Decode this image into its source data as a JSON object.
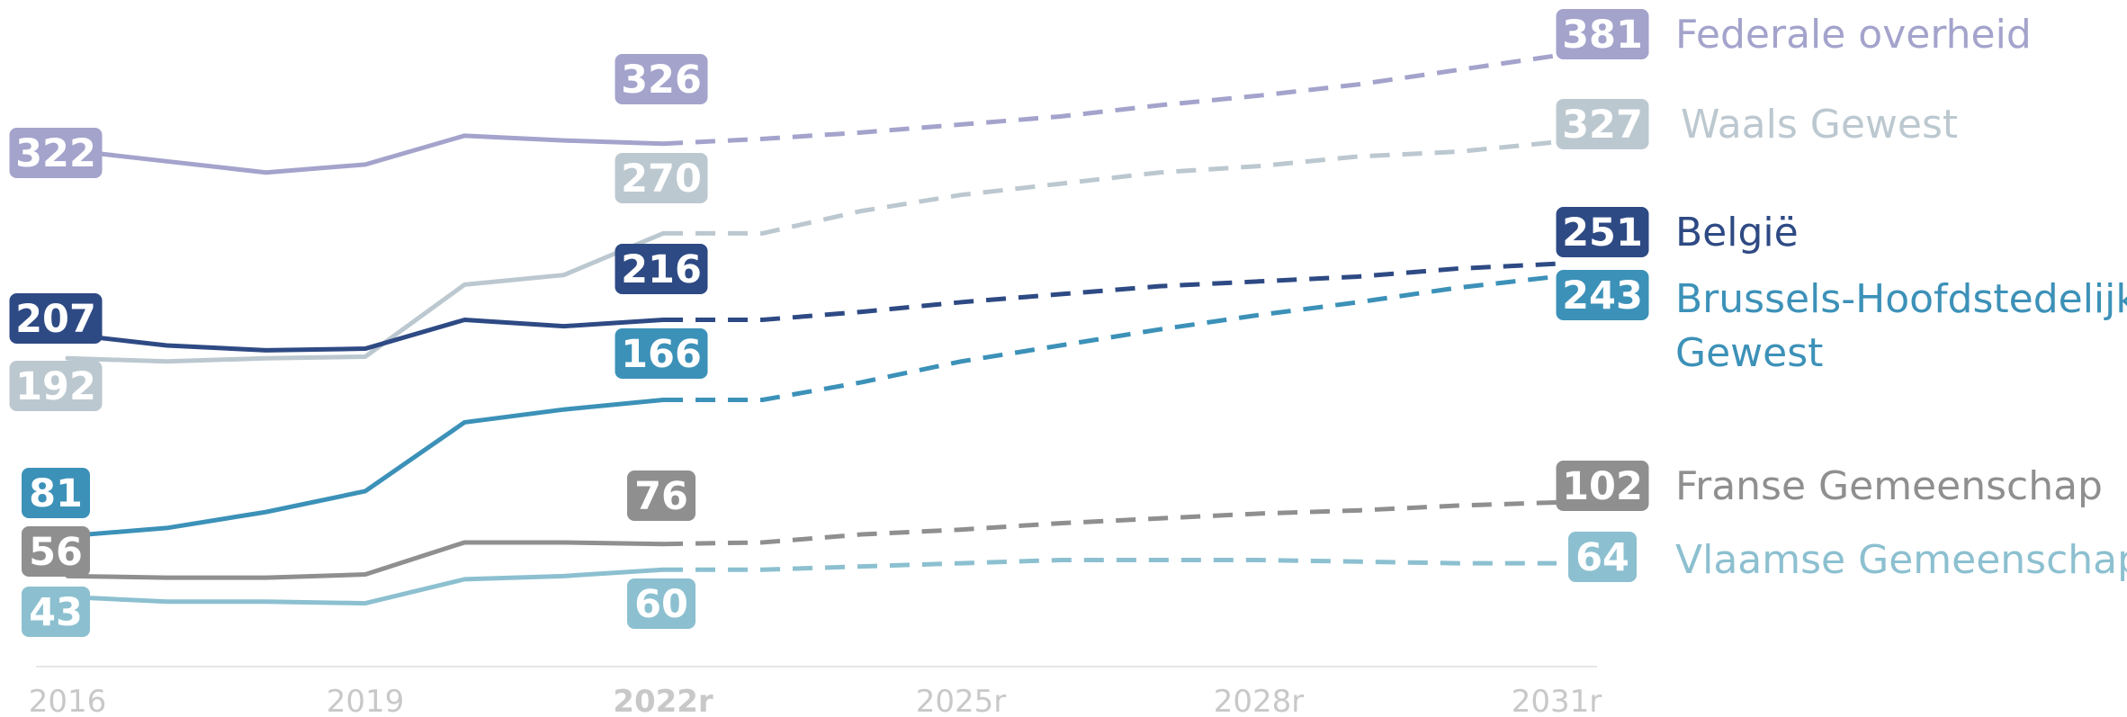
{
  "chart_data": {
    "type": "line",
    "x": [
      2016,
      2017,
      2018,
      2019,
      2020,
      2021,
      2022,
      2023,
      2024,
      2025,
      2026,
      2027,
      2028,
      2029,
      2030,
      2031
    ],
    "x_ticks": [
      {
        "x": 2016,
        "label": "2016",
        "bold": false
      },
      {
        "x": 2019,
        "label": "2019",
        "bold": false
      },
      {
        "x": 2022,
        "label": "2022r",
        "bold": true
      },
      {
        "x": 2025,
        "label": "2025r",
        "bold": false
      },
      {
        "x": 2028,
        "label": "2028r",
        "bold": false
      },
      {
        "x": 2031,
        "label": "2031r",
        "bold": false
      }
    ],
    "actual_through": 2022,
    "series": [
      {
        "name": "Federale overheid",
        "color": "#a3a3cc",
        "legend_lines": [
          "Federale overheid"
        ],
        "values": [
          322,
          315,
          308,
          313,
          331,
          328,
          326,
          329,
          333,
          338,
          343,
          350,
          356,
          363,
          372,
          381
        ],
        "labels": {
          "2016": "322",
          "2022": "326",
          "2031": "381"
        }
      },
      {
        "name": "Waals Gewest",
        "color": "#bcc8d0",
        "legend_lines": [
          "Waals Gewest"
        ],
        "values": [
          192,
          190,
          192,
          193,
          238,
          244,
          270,
          270,
          284,
          294,
          301,
          308,
          312,
          318,
          321,
          327
        ],
        "labels": {
          "2016": "192",
          "2022": "270",
          "2031": "327"
        }
      },
      {
        "name": "België",
        "color": "#2e4a84",
        "legend_lines": [
          "België"
        ],
        "values": [
          207,
          200,
          197,
          198,
          216,
          212,
          216,
          216,
          221,
          227,
          232,
          237,
          240,
          243,
          248,
          251
        ],
        "labels": {
          "2016": "207",
          "2022": "216",
          "2031": "251"
        }
      },
      {
        "name": "Brussels-Hoofdstedelijk Gewest",
        "color": "#3c91b8",
        "legend_lines": [
          "Brussels-Hoofdstedelijk",
          "Gewest"
        ],
        "values": [
          81,
          86,
          96,
          109,
          152,
          160,
          166,
          166,
          177,
          190,
          200,
          210,
          219,
          227,
          236,
          243
        ],
        "labels": {
          "2016": "81",
          "2022": "166",
          "2031": "243"
        }
      },
      {
        "name": "Franse Gemeenschap",
        "color": "#8f8f8f",
        "legend_lines": [
          "Franse Gemeenschap"
        ],
        "values": [
          56,
          55,
          55,
          57,
          77,
          77,
          76,
          77,
          82,
          85,
          89,
          92,
          95,
          97,
          100,
          102
        ],
        "labels": {
          "2016": "56",
          "2022": "76",
          "2031": "102"
        }
      },
      {
        "name": "Vlaamse Gemeenschap",
        "color": "#8cc0d0",
        "legend_lines": [
          "Vlaamse Gemeenschap"
        ],
        "values": [
          43,
          40,
          40,
          39,
          54,
          56,
          60,
          60,
          62,
          64,
          66,
          66,
          66,
          65,
          64,
          64
        ],
        "labels": {
          "2016": "43",
          "2022": "60",
          "2031": "64"
        }
      }
    ],
    "ylim": [
      0,
      400
    ],
    "grid": false,
    "legend": "right, inline at line ends"
  }
}
